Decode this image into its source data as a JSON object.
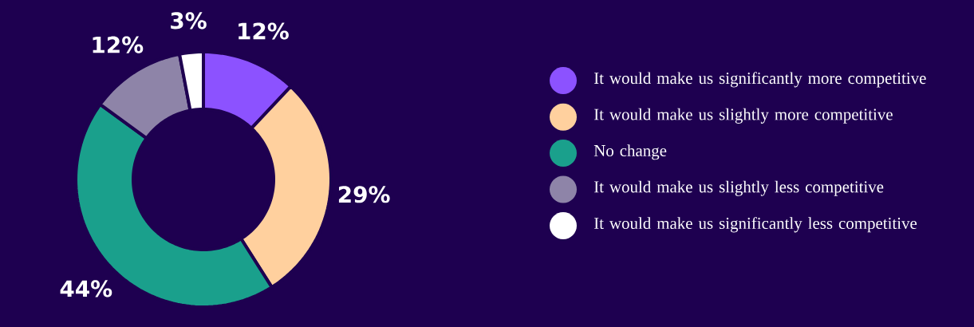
{
  "chart_data": {
    "type": "donut",
    "categories": [
      "It would make us significantly more competitive",
      "It would make us slightly more competitive",
      "No change",
      "It would make us slightly less competitive",
      "It would make us significantly less competitive"
    ],
    "values": [
      12,
      29,
      44,
      12,
      3
    ],
    "colors": [
      "#8c52ff",
      "#ffd09e",
      "#1aa08c",
      "#8e84a8",
      "#ffffff"
    ],
    "value_labels": [
      "12%",
      "29%",
      "44%",
      "12%",
      "3%"
    ],
    "legend": "right"
  }
}
